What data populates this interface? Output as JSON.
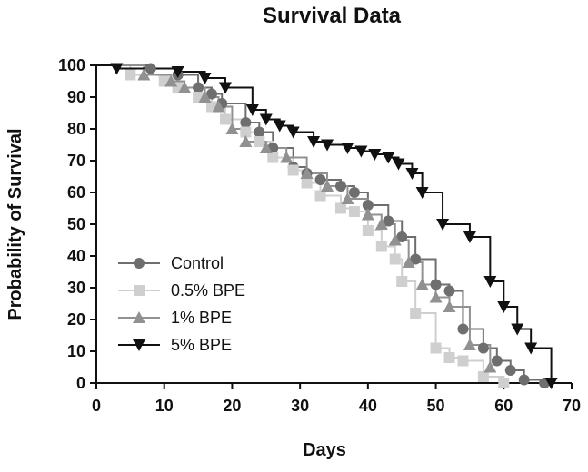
{
  "chart_data": {
    "type": "line",
    "title": "Survival Data",
    "xlabel": "Days",
    "ylabel": "Probability of Survival",
    "xlim": [
      0,
      70
    ],
    "ylim": [
      0,
      100
    ],
    "xticks": [
      0,
      10,
      20,
      30,
      40,
      50,
      60,
      70
    ],
    "yticks": [
      0,
      10,
      20,
      30,
      40,
      50,
      60,
      70,
      80,
      90,
      100
    ],
    "step": true,
    "legend_position": "bottom-left",
    "series": [
      {
        "name": "Control",
        "marker": "circle",
        "color": "#6e6e6e",
        "x": [
          8,
          12,
          15,
          17,
          18.5,
          22,
          24,
          26,
          29,
          31,
          33,
          36,
          38,
          40,
          43,
          45,
          47,
          50,
          52,
          54,
          57,
          59,
          61,
          63,
          66
        ],
        "y": [
          99,
          97,
          93,
          91,
          88,
          82,
          79,
          74,
          68,
          66,
          64,
          62,
          60,
          56,
          51,
          46,
          39,
          31,
          29,
          17,
          11,
          7,
          4,
          1,
          0
        ]
      },
      {
        "name": "0.5% BPE",
        "marker": "square",
        "color": "#cfcfcf",
        "x": [
          5,
          10,
          12,
          15,
          17,
          19,
          22,
          24,
          26,
          29,
          31,
          33,
          36,
          38,
          40,
          42,
          44,
          45,
          47,
          50,
          52,
          54,
          57,
          60
        ],
        "y": [
          97,
          95,
          93,
          90,
          87,
          83,
          79,
          76,
          71,
          67,
          63,
          59,
          55,
          54,
          48,
          43,
          39,
          32,
          22,
          11,
          8,
          7,
          2,
          0
        ]
      },
      {
        "name": "1% BPE",
        "marker": "triangle-up",
        "color": "#919191",
        "x": [
          7,
          11,
          13,
          16,
          18,
          20,
          22,
          25,
          28,
          31,
          34,
          37,
          40,
          42,
          44,
          46,
          48,
          50,
          52,
          55,
          58
        ],
        "y": [
          97,
          95,
          93,
          90,
          87,
          80,
          76,
          74,
          71,
          66,
          62,
          58,
          53,
          50,
          45,
          38,
          31,
          27,
          24,
          12,
          5
        ]
      },
      {
        "name": "5% BPE",
        "marker": "triangle-down",
        "color": "#111111",
        "x": [
          3,
          12,
          16,
          19,
          23,
          25,
          27,
          29,
          32,
          34,
          37,
          39,
          41,
          43,
          44.5,
          46.5,
          48,
          51,
          55,
          58,
          60,
          62,
          64,
          67
        ],
        "y": [
          99,
          98,
          96,
          93,
          86,
          83,
          81,
          79,
          76,
          75,
          74,
          73,
          72,
          71,
          69,
          66,
          60,
          50,
          46,
          32,
          24,
          17,
          11,
          0
        ]
      }
    ]
  }
}
